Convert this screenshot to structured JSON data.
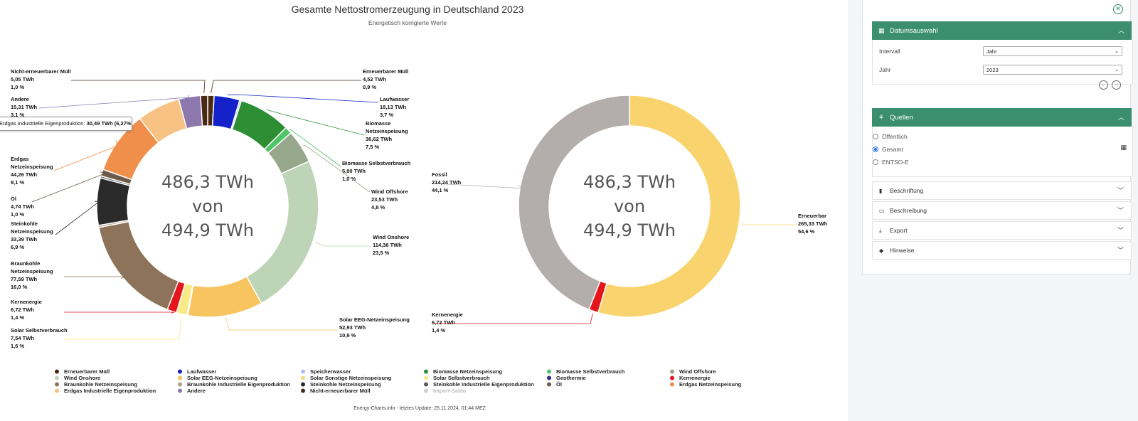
{
  "header": {
    "title": "Gesamte Nettostromerzeugung in Deutschland 2023",
    "subtitle": "Energetisch korrigierte Werte"
  },
  "tooltip": {
    "name": "Erdgas Industrielle Eigenproduktion",
    "value": "30,49 TWh (6,27%)"
  },
  "chart_data": [
    {
      "type": "pie",
      "variant": "donut",
      "center_text": [
        "486,3 TWh",
        "von",
        "494,9 TWh"
      ],
      "unit": "TWh",
      "slices": [
        {
          "name": "Erneuerbarer Müll",
          "label": "Erneuerbarer Müll",
          "value": 4.52,
          "value_text": "4,52 TWh",
          "percent_text": "0,9 %",
          "color": "#4a2a12"
        },
        {
          "name": "Laufwasser",
          "label": "Laufwasser",
          "value": 18.13,
          "value_text": "18,13 TWh",
          "percent_text": "3,7 %",
          "color": "#1521c9"
        },
        {
          "name": "Speicherwasser",
          "label": "",
          "value": 1.2,
          "value_text": "",
          "percent_text": "",
          "color": "#a8c4ef"
        },
        {
          "name": "Biomasse Netzeinspeisung",
          "label": "Biomasse Netzeinspeisung",
          "value": 36.62,
          "value_text": "36,62 TWh",
          "percent_text": "7,5 %",
          "color": "#2d8e34"
        },
        {
          "name": "Biomasse Selbstverbrauch",
          "label": "Biomasse Selbstverbrauch",
          "value": 5.0,
          "value_text": "5,00 TWh",
          "percent_text": "1,0 %",
          "color": "#4fc466"
        },
        {
          "name": "Wind Offshore",
          "label": "Wind Offshore",
          "value": 23.53,
          "value_text": "23,53 TWh",
          "percent_text": "4,8 %",
          "color": "#97a78b"
        },
        {
          "name": "Wind Onshore",
          "label": "Wind Onshore",
          "value": 114.36,
          "value_text": "114,36 TWh",
          "percent_text": "23,5 %",
          "color": "#bdd4b6"
        },
        {
          "name": "Solar EEG-Netzeinspeisung",
          "label": "Solar EEG-Netzeinspeisung",
          "value": 52.93,
          "value_text": "52,93 TWh",
          "percent_text": "10,9 %",
          "color": "#f8c45f"
        },
        {
          "name": "Solar Sonstige Netzeinspeisung",
          "label": "",
          "value": 0.6,
          "value_text": "",
          "percent_text": "",
          "color": "#f6dd84"
        },
        {
          "name": "Solar Selbstverbrauch",
          "label": "Solar Selbstverbrauch",
          "value": 7.54,
          "value_text": "7,54 TWh",
          "percent_text": "1,6 %",
          "color": "#f7ea87"
        },
        {
          "name": "Kernenergie",
          "label": "Kernenergie",
          "value": 6.72,
          "value_text": "6,72 TWh",
          "percent_text": "1,4 %",
          "color": "#e4151b"
        },
        {
          "name": "Braunkohle Netzeinspeisung",
          "label": "Braunkohle Netzeinspeisung",
          "value": 77.59,
          "value_text": "77,59 TWh",
          "percent_text": "16,0 %",
          "color": "#8c7359"
        },
        {
          "name": "Braunkohle Industrielle Eigenproduktion",
          "label": "",
          "value": 1.4,
          "value_text": "",
          "percent_text": "",
          "color": "#b59d85"
        },
        {
          "name": "Steinkohle Netzeinspeisung",
          "label": "Steinkohle Netzeinspeisung",
          "value": 33.39,
          "value_text": "33,39 TWh",
          "percent_text": "6,9 %",
          "color": "#2a2a2a"
        },
        {
          "name": "Steinkohle Industrielle Eigenproduktion",
          "label": "",
          "value": 1.4,
          "value_text": "",
          "percent_text": "",
          "color": "#5a5a5a"
        },
        {
          "name": "Öl",
          "label": "Öl",
          "value": 4.74,
          "value_text": "4,74 TWh",
          "percent_text": "1,0 %",
          "color": "#6e5a49"
        },
        {
          "name": "Erdgas Netzeinspeisung",
          "label": "Erdgas Netzeinspeisung",
          "value": 44.26,
          "value_text": "44,26 TWh",
          "percent_text": "9,1 %",
          "color": "#ef8f4b"
        },
        {
          "name": "Erdgas Industrielle Eigenproduktion",
          "label": "",
          "value": 30.49,
          "value_text": "30,49 TWh",
          "percent_text": "6,3 %",
          "color": "#f7c283"
        },
        {
          "name": "Andere",
          "label": "Andere",
          "value": 15.31,
          "value_text": "15,31 TWh",
          "percent_text": "3,1 %",
          "color": "#8c78ac"
        },
        {
          "name": "Nicht-erneuerbarer Müll",
          "label": "Nicht-erneuerbarer Müll",
          "value": 5.05,
          "value_text": "5,05 TWh",
          "percent_text": "1,0 %",
          "color": "#4a2a12"
        }
      ]
    },
    {
      "type": "pie",
      "variant": "donut",
      "center_text": [
        "486,3 TWh",
        "von",
        "494,9 TWh"
      ],
      "unit": "TWh",
      "slices": [
        {
          "name": "Erneuerbar",
          "label": "Erneuerbar",
          "value": 265.33,
          "value_text": "265,33 TWh",
          "percent_text": "54,6 %",
          "color": "#f9d46e"
        },
        {
          "name": "Kernenergie",
          "label": "Kernenergie",
          "value": 6.72,
          "value_text": "6,72 TWh",
          "percent_text": "1,4 %",
          "color": "#e4151b"
        },
        {
          "name": "Fossil",
          "label": "Fossil",
          "value": 214.24,
          "value_text": "214,24 TWh",
          "percent_text": "44,1 %",
          "color": "#b3aeac"
        }
      ]
    }
  ],
  "legend": [
    {
      "name": "Erneuerbarer Müll",
      "color": "#4a2a12"
    },
    {
      "name": "Laufwasser",
      "color": "#1521c9"
    },
    {
      "name": "Speicherwasser",
      "color": "#a8c4ef"
    },
    {
      "name": "Biomasse Netzeinspeisung",
      "color": "#2d8e34"
    },
    {
      "name": "Biomasse Selbstverbrauch",
      "color": "#4fc466"
    },
    {
      "name": "Wind Offshore",
      "color": "#97a78b"
    },
    {
      "name": "Wind Onshore",
      "color": "#bdd4b6"
    },
    {
      "name": "Solar EEG-Netzeinspeisung",
      "color": "#f8c45f"
    },
    {
      "name": "Solar Sonstige Netzeinspeisung",
      "color": "#f6dd84"
    },
    {
      "name": "Solar Selbstverbrauch",
      "color": "#f7ea87"
    },
    {
      "name": "Geothermie",
      "color": "#2f2c8a"
    },
    {
      "name": "Kernenergie",
      "color": "#e4151b"
    },
    {
      "name": "Braunkohle Netzeinspeisung",
      "color": "#8c7359"
    },
    {
      "name": "Braunkohle Industrielle Eigenproduktion",
      "color": "#b59d85"
    },
    {
      "name": "Steinkohle Netzeinspeisung",
      "color": "#2a2a2a"
    },
    {
      "name": "Steinkohle Industrielle Eigenproduktion",
      "color": "#5a5a5a"
    },
    {
      "name": "Öl",
      "color": "#6e5a49"
    },
    {
      "name": "Erdgas Netzeinspeisung",
      "color": "#ef8f4b"
    },
    {
      "name": "Erdgas Industrielle Eigenproduktion",
      "color": "#f7c283"
    },
    {
      "name": "Andere",
      "color": "#8c78ac"
    },
    {
      "name": "Nicht-erneuerbarer Müll",
      "color": "#4a2a12"
    },
    {
      "name": "Import-Saldo",
      "color": "#cfcfcf",
      "disabled": true
    }
  ],
  "footer": "Energy-Charts.info - letztes Update: 25.11.2024, 01:44 MEZ",
  "sidebar": {
    "date_panel": {
      "title": "Datumsauswahl",
      "interval_label": "Intervall",
      "interval_value": "Jahr",
      "year_label": "Jahr",
      "year_value": "2023"
    },
    "sources_panel": {
      "title": "Quellen",
      "options": [
        "Öffentlich",
        "Gesamt",
        "ENTSO-E"
      ],
      "selected": "Gesamt"
    },
    "collapsed": [
      "Beschriftung",
      "Beschreibung",
      "Export",
      "Hinweise"
    ]
  }
}
